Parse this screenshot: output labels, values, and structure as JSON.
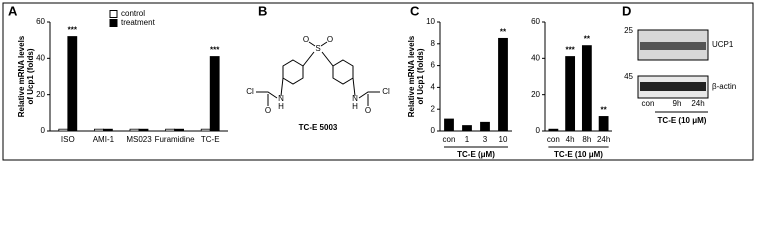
{
  "chart_data": [
    {
      "type": "bar",
      "panel": "A",
      "ylabel": "Relative mRNA levels",
      "ylabel2": "of Ucp1 (folds)",
      "categories": [
        "ISO",
        "AMI-1",
        "MS023",
        "Furamidine",
        "TC-E"
      ],
      "series": [
        {
          "name": "control",
          "color": "#ffffff",
          "values": [
            1,
            1,
            1,
            1,
            1
          ]
        },
        {
          "name": "treatment",
          "color": "#000000",
          "values": [
            52,
            1,
            1,
            1,
            41
          ]
        }
      ],
      "annotations": [
        "***",
        null,
        null,
        null,
        "***"
      ],
      "ylim": [
        0,
        60
      ],
      "yticks": [
        0,
        20,
        40,
        60
      ]
    },
    {
      "type": "bar",
      "panel": "C",
      "ylabel": "Relative mRNA levels",
      "ylabel2": "of Ucp1 (folds)",
      "categories": [
        "con",
        "1",
        "3",
        "10"
      ],
      "values": [
        1.1,
        0.5,
        0.8,
        8.5
      ],
      "color": "#000000",
      "annotations": [
        null,
        null,
        null,
        "**"
      ],
      "xlabel": "TC-E (μM)",
      "ylim": [
        0,
        10
      ],
      "yticks": [
        0,
        2,
        4,
        6,
        8,
        10
      ]
    },
    {
      "type": "bar",
      "categories": [
        "con",
        "4h",
        "8h",
        "24h"
      ],
      "values": [
        1,
        41,
        47,
        8
      ],
      "color": "#000000",
      "annotations": [
        null,
        "***",
        "**",
        "**"
      ],
      "xlabel": "TC-E (10 μM)",
      "ylim": [
        0,
        60
      ],
      "yticks": [
        0,
        20,
        40,
        60
      ]
    }
  ],
  "structure": {
    "panel": "B",
    "name": "TC-E 5003",
    "atoms": [
      "O",
      "S",
      "O",
      "N",
      "H",
      "O",
      "Cl",
      "N",
      "H",
      "O",
      "Cl"
    ]
  },
  "blot": {
    "panel": "D",
    "bands": [
      "UCP1",
      "β-actin"
    ],
    "markers": [
      "25",
      "45"
    ],
    "lanes": [
      "con",
      "9h",
      "24h"
    ],
    "treatment": "TC-E (10 μM)"
  }
}
